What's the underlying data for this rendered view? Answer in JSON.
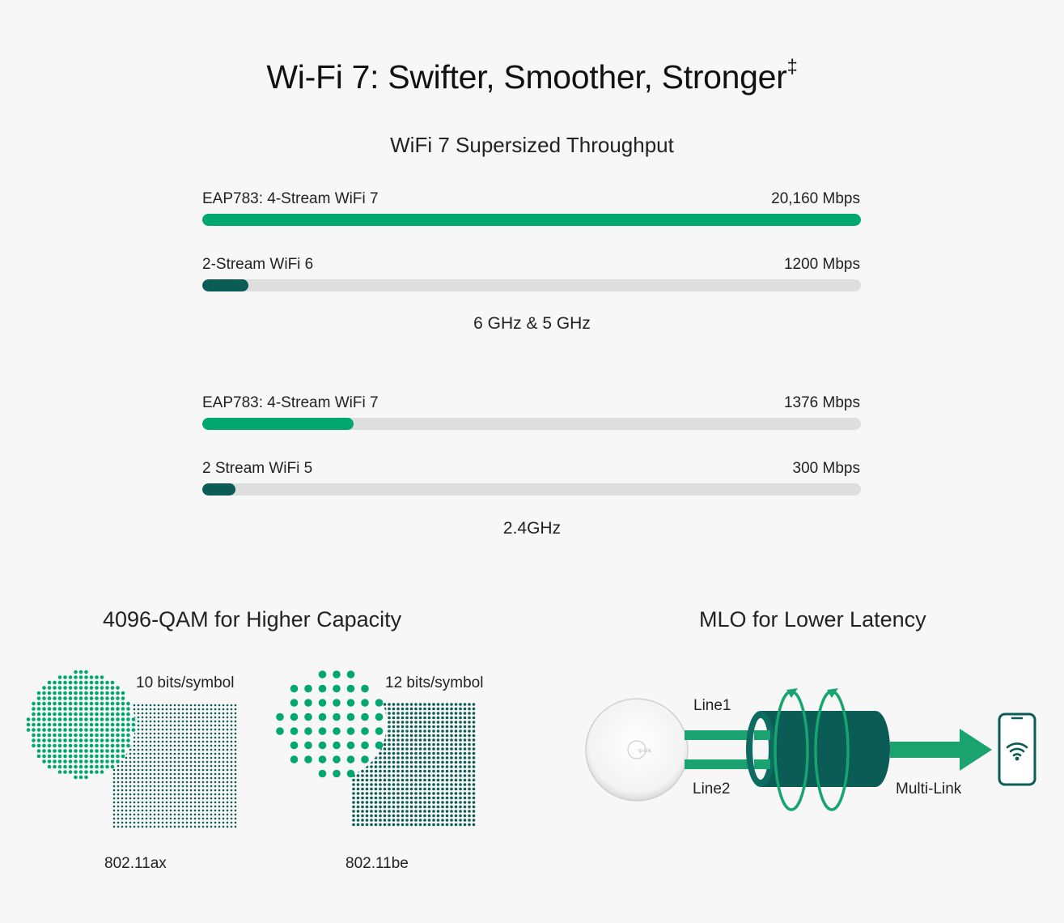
{
  "header": {
    "title": "Wi-Fi 7: Swifter, Smoother, Stronger",
    "title_mark": "‡"
  },
  "throughput": {
    "title": "WiFi 7 Supersized Throughput",
    "groups": [
      {
        "band": "6 GHz & 5 GHz",
        "bars": [
          {
            "label": "EAP783: 4-Stream WiFi 7",
            "value": "20,160 Mbps",
            "fill_fraction": 1.0,
            "color": "#00a870"
          },
          {
            "label": "2-Stream WiFi 6",
            "value": "1200 Mbps",
            "fill_fraction": 0.07,
            "color": "#0a5c55"
          }
        ]
      },
      {
        "band": "2.4GHz",
        "bars": [
          {
            "label": "EAP783: 4-Stream WiFi 7",
            "value": "1376 Mbps",
            "fill_fraction": 0.23,
            "color": "#00a870"
          },
          {
            "label": "2 Stream WiFi 5",
            "value": "300 Mbps",
            "fill_fraction": 0.05,
            "color": "#0a5c55"
          }
        ]
      }
    ]
  },
  "qam": {
    "title": "4096-QAM for Higher Capacity",
    "left": {
      "bits": "10 bits/symbol",
      "standard": "802.11ax"
    },
    "right": {
      "bits": "12 bits/symbol",
      "standard": "802.11be"
    }
  },
  "mlo": {
    "title": "MLO for Lower Latency",
    "line1": "Line1",
    "line2": "Line2",
    "multilink": "Multi-Link",
    "device_logo": "tp-link"
  },
  "colors": {
    "accent_green": "#00a870",
    "dark_teal": "#0a5c55",
    "track": "#dedede"
  }
}
